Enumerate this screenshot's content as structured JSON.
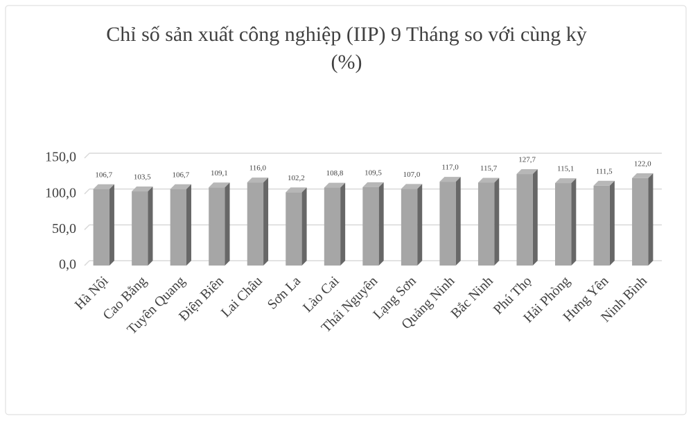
{
  "chart_data": {
    "type": "bar",
    "title": "Chỉ số sản xuất công nghiệp (IIP) 9 Tháng so với cùng kỳ (%)",
    "categories": [
      "Hà Nội",
      "Cao Bằng",
      "Tuyên Quang",
      "Điện Biên",
      "Lai Châu",
      "Sơn La",
      "Lào Cai",
      "Thái Nguyên",
      "Lạng Sơn",
      "Quảng Ninh",
      "Bắc Ninh",
      "Phú Thọ",
      "Hải Phòng",
      "Hưng Yên",
      "Ninh Bình"
    ],
    "values": [
      106.7,
      103.5,
      106.7,
      109.1,
      116.0,
      102.2,
      108.8,
      109.5,
      107.0,
      117.0,
      115.7,
      127.7,
      115.1,
      111.5,
      122.0
    ],
    "value_labels": [
      "106,7",
      "103,5",
      "106,7",
      "109,1",
      "116,0",
      "102,2",
      "108,8",
      "109,5",
      "107,0",
      "117,0",
      "115,7",
      "127,7",
      "115,1",
      "111,5",
      "122,0"
    ],
    "color": "#a6a6a6",
    "ylim": [
      0,
      150
    ],
    "yticks": [
      {
        "value": 0,
        "label": "0,0"
      },
      {
        "value": 50,
        "label": "50,0"
      },
      {
        "value": 100,
        "label": "100,0"
      },
      {
        "value": 150,
        "label": "150,0"
      }
    ],
    "grid": true
  }
}
